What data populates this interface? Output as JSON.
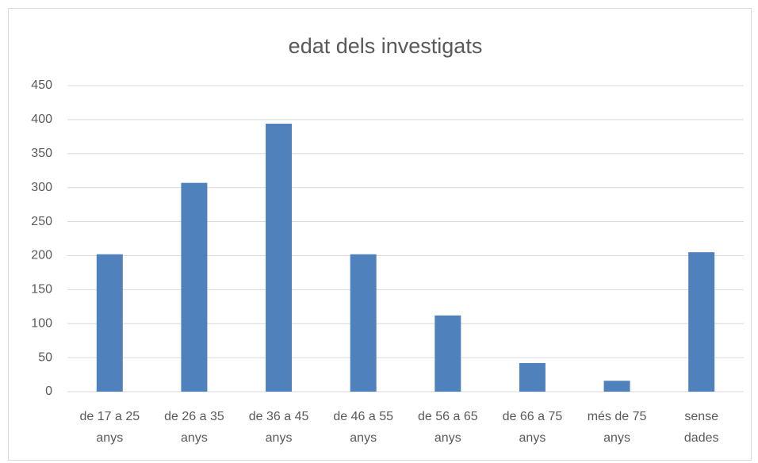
{
  "chart_data": {
    "type": "bar",
    "title": "edat dels investigats",
    "categories": [
      "de 17 a 25\nanys",
      "de 26 a 35\nanys",
      "de 36 a 45\nanys",
      "de 46 a 55\nanys",
      "de 56 a 65\nanys",
      "de 66 a 75\nanys",
      "més de 75\nanys",
      "sense\ndades"
    ],
    "values": [
      202,
      307,
      394,
      202,
      112,
      42,
      16,
      205
    ],
    "color": "#4f81bd",
    "ylim": [
      0,
      450
    ],
    "yticks": [
      0,
      50,
      100,
      150,
      200,
      250,
      300,
      350,
      400,
      450
    ],
    "grid": true
  }
}
